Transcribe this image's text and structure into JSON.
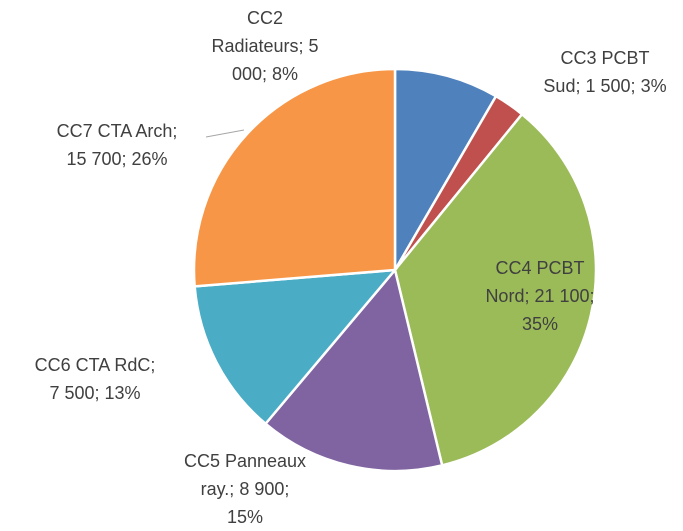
{
  "chart_data": {
    "type": "pie",
    "categories": [
      "CC2 Radiateurs",
      "CC3 PCBT Sud",
      "CC4 PCBT Nord",
      "CC5 Panneaux ray.",
      "CC6 CTA RdC",
      "CC7 CTA Arch"
    ],
    "values": [
      5000,
      1500,
      21100,
      8900,
      7500,
      15700
    ],
    "value_labels": [
      "5 000",
      "1 500",
      "21 100",
      "8 900",
      "7 500",
      "15 700"
    ],
    "percents": [
      8,
      3,
      35,
      15,
      13,
      26
    ],
    "percent_labels": [
      "8%",
      "3%",
      "35%",
      "15%",
      "13%",
      "26%"
    ],
    "label_separator": ";",
    "colors": [
      "#4f81bd",
      "#c0504d",
      "#9bbb59",
      "#8064a2",
      "#4bacc6",
      "#f79646"
    ]
  }
}
